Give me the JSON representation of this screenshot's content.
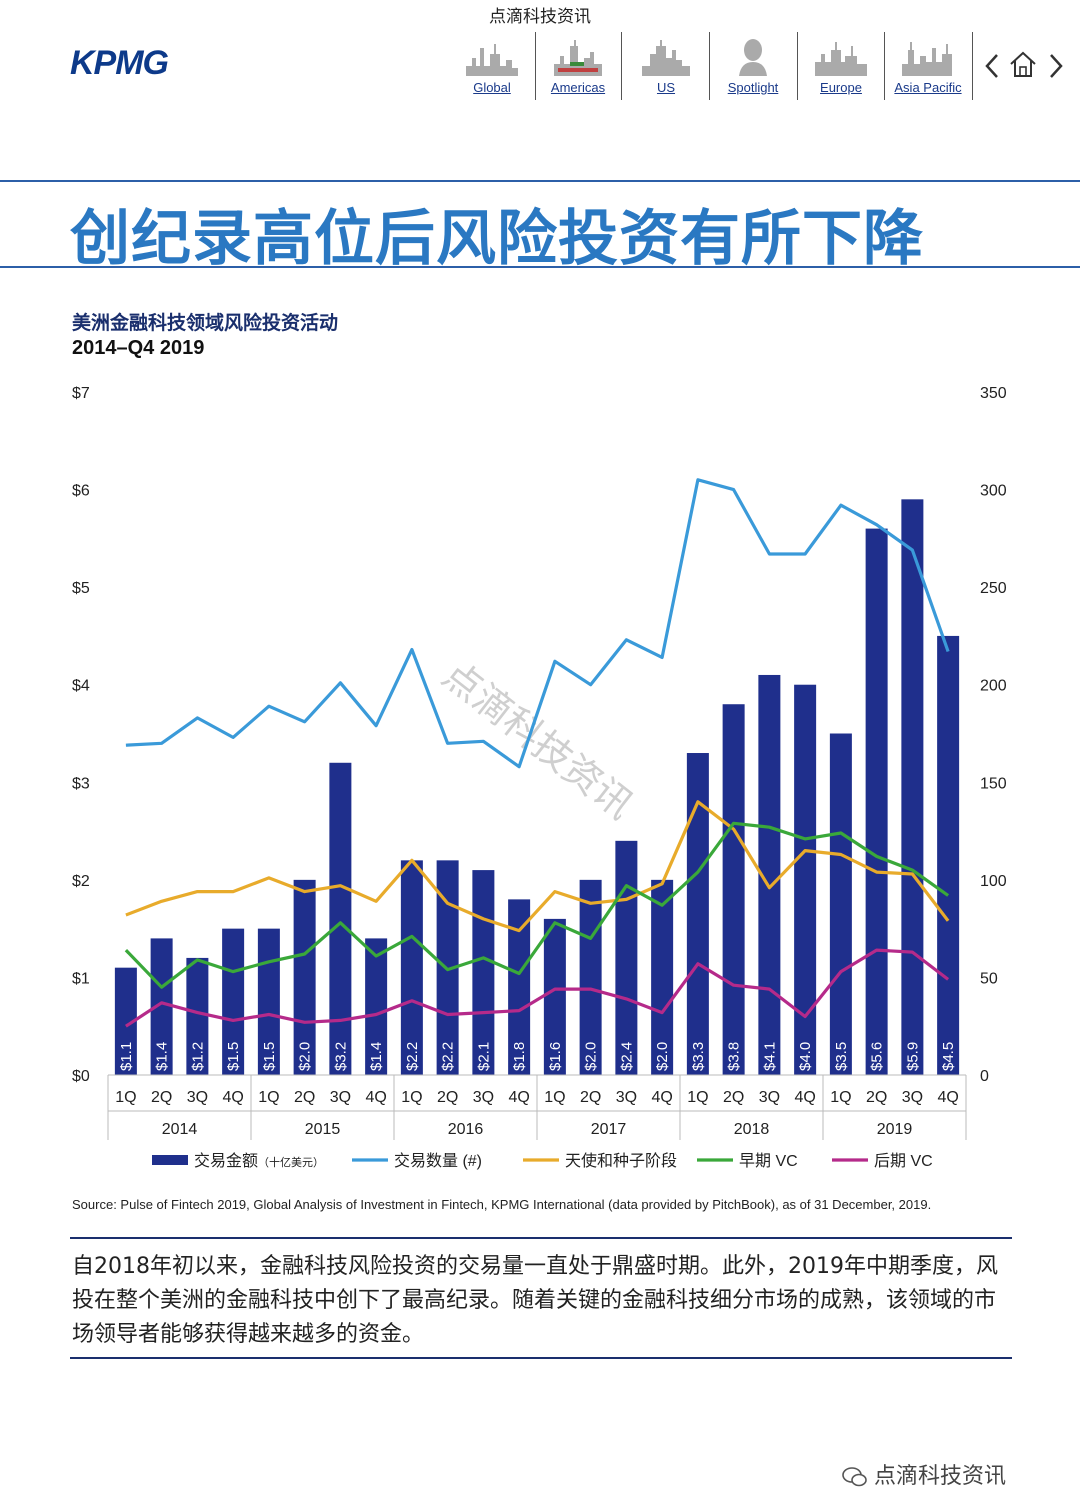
{
  "watermark_top": "点滴科技资讯",
  "logo": "KPMG",
  "nav": {
    "items": [
      {
        "label": "Global",
        "icon": "global-skyline-icon"
      },
      {
        "label": "Americas",
        "icon": "americas-skyline-icon"
      },
      {
        "label": "US",
        "icon": "us-skyline-icon"
      },
      {
        "label": "Spotlight",
        "icon": "spotlight-bust-icon"
      },
      {
        "label": "Europe",
        "icon": "europe-skyline-icon"
      },
      {
        "label": "Asia Pacific",
        "icon": "asia-pacific-skyline-icon"
      }
    ],
    "prev_icon": "chevron-left-icon",
    "home_icon": "home-icon",
    "next_icon": "chevron-right-icon"
  },
  "headline": "创纪录高位后风险投资有所下降",
  "chart_title": "美洲金融科技领域风险投资活动",
  "chart_subtitle": "2014–Q4 2019",
  "diagonal_watermark": "点滴科技资讯",
  "chart_data": {
    "type": "bar",
    "categories": [
      "1Q",
      "2Q",
      "3Q",
      "4Q",
      "1Q",
      "2Q",
      "3Q",
      "4Q",
      "1Q",
      "2Q",
      "3Q",
      "4Q",
      "1Q",
      "2Q",
      "3Q",
      "4Q",
      "1Q",
      "2Q",
      "3Q",
      "4Q",
      "1Q",
      "2Q",
      "3Q",
      "4Q"
    ],
    "years": [
      "2014",
      "2015",
      "2016",
      "2017",
      "2018",
      "2019"
    ],
    "y_left": {
      "ticks": [
        "$0",
        "$1",
        "$2",
        "$3",
        "$4",
        "$5",
        "$6",
        "$7"
      ],
      "range": [
        0,
        7
      ]
    },
    "y_right": {
      "ticks": [
        "0",
        "50",
        "100",
        "150",
        "200",
        "250",
        "300",
        "350"
      ],
      "range": [
        0,
        350
      ]
    },
    "series": [
      {
        "name": "交易金额",
        "name_suffix": "（十亿美元）",
        "type": "bar",
        "axis": "left",
        "color": "#1f2f8c",
        "values": [
          1.1,
          1.4,
          1.2,
          1.5,
          1.5,
          2.0,
          3.2,
          1.4,
          2.2,
          2.2,
          2.1,
          1.8,
          1.6,
          2.0,
          2.4,
          2.0,
          3.3,
          3.8,
          4.1,
          4.0,
          3.5,
          5.6,
          5.9,
          4.5
        ],
        "labels": [
          "$1.1",
          "$1.4",
          "$1.2",
          "$1.5",
          "$1.5",
          "$2.0",
          "$3.2",
          "$1.4",
          "$2.2",
          "$2.2",
          "$2.1",
          "$1.8",
          "$1.6",
          "$2.0",
          "$2.4",
          "$2.0",
          "$3.3",
          "$3.8",
          "$4.1",
          "$4.0",
          "$3.5",
          "$5.6",
          "$5.9",
          "$4.5"
        ]
      },
      {
        "name": "交易数量 (#)",
        "type": "line",
        "axis": "right",
        "color": "#3a9ad9",
        "values": [
          169,
          170,
          183,
          173,
          189,
          181,
          201,
          179,
          218,
          170,
          171,
          158,
          212,
          200,
          223,
          214,
          305,
          300,
          267,
          267,
          292,
          282,
          269,
          217
        ]
      },
      {
        "name": "天使和种子阶段",
        "type": "line",
        "axis": "right",
        "color": "#e8ab2b",
        "values": [
          82,
          89,
          94,
          94,
          101,
          94,
          97,
          89,
          110,
          88,
          80,
          74,
          94,
          88,
          90,
          98,
          140,
          126,
          96,
          115,
          113,
          104,
          103,
          79
        ]
      },
      {
        "name": "早期 VC",
        "type": "line",
        "axis": "right",
        "color": "#3aa83a",
        "values": [
          64,
          45,
          59,
          53,
          58,
          62,
          78,
          61,
          71,
          54,
          60,
          52,
          78,
          70,
          97,
          87,
          104,
          129,
          127,
          121,
          124,
          112,
          105,
          92
        ]
      },
      {
        "name": "后期 VC",
        "type": "line",
        "axis": "right",
        "color": "#b52a8a",
        "values": [
          25,
          37,
          32,
          28,
          31,
          27,
          28,
          31,
          38,
          31,
          32,
          33,
          44,
          44,
          39,
          32,
          57,
          46,
          44,
          30,
          53,
          64,
          63,
          49
        ]
      }
    ],
    "grid": false,
    "legend_position": "bottom"
  },
  "source": "Source: Pulse of Fintech 2019, Global Analysis of Investment in Fintech, KPMG International (data provided by PitchBook), as of 31 December, 2019.",
  "body_text": "自2018年初以来，金融科技风险投资的交易量一直处于鼎盛时期。此外，2019年中期季度，风投在整个美洲的金融科技中创下了最高纪录。随着关键的金融科技细分市场的成熟，该领域的市场领导者能够获得越来越多的资金。",
  "footer_watermark": "点滴科技资讯"
}
